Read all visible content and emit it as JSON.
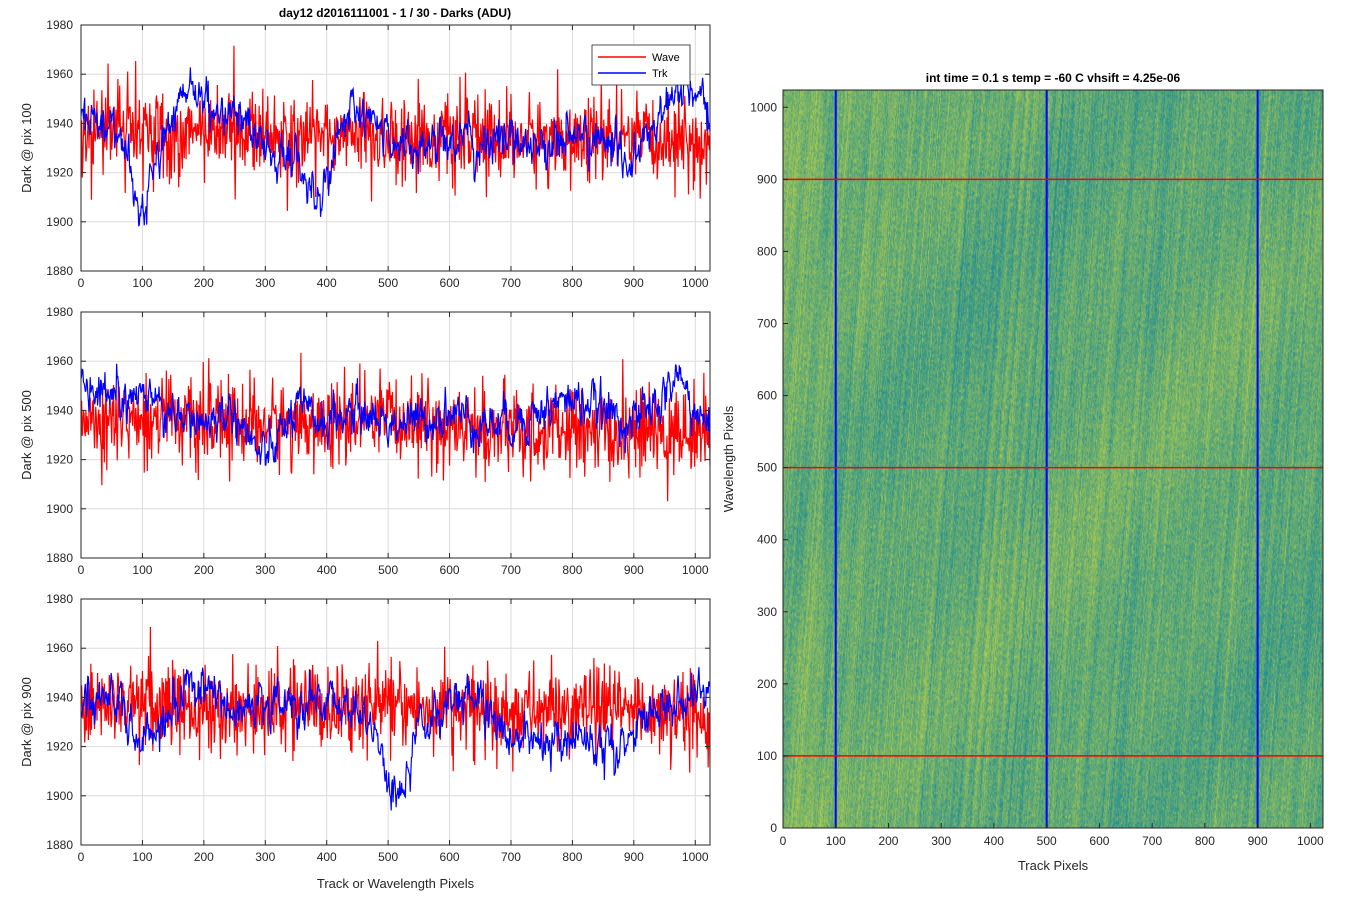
{
  "figure": {
    "title": "day12 d2016111001 - 1 / 30 - Darks (ADU)",
    "legend": {
      "placement": "top-right",
      "entries": [
        "Wave",
        "Trk"
      ]
    }
  },
  "colors": {
    "wave": "#ff0000",
    "trk": "#0000ff",
    "grid": "#dcdcdc",
    "axis": "#262626"
  },
  "chart_data": [
    {
      "type": "line",
      "ylabel": "Dark @ pix 100",
      "xlabel": "",
      "xlim": [
        0,
        1024
      ],
      "ylim": [
        1880,
        1980
      ],
      "xticks": [
        0,
        100,
        200,
        300,
        400,
        500,
        600,
        700,
        800,
        900,
        1000
      ],
      "yticks": [
        1880,
        1900,
        1920,
        1940,
        1960,
        1980
      ],
      "grid": true,
      "series": [
        {
          "name": "Wave",
          "color": "#ff0000",
          "x": [
            0,
            50,
            100,
            150,
            200,
            250,
            300,
            350,
            400,
            450,
            500,
            550,
            600,
            650,
            700,
            750,
            800,
            850,
            900,
            950,
            1000,
            1024
          ],
          "y": [
            1938,
            1940,
            1938,
            1935,
            1937,
            1936,
            1935,
            1934,
            1936,
            1935,
            1934,
            1935,
            1933,
            1934,
            1933,
            1934,
            1933,
            1934,
            1932,
            1933,
            1932,
            1930
          ]
        },
        {
          "name": "Trk",
          "color": "#0000ff",
          "x": [
            0,
            50,
            80,
            100,
            130,
            150,
            180,
            200,
            250,
            300,
            350,
            380,
            400,
            430,
            450,
            500,
            550,
            600,
            650,
            700,
            750,
            800,
            850,
            900,
            950,
            980,
            1000,
            1024
          ],
          "y": [
            1945,
            1940,
            1920,
            1905,
            1925,
            1945,
            1955,
            1950,
            1945,
            1930,
            1925,
            1910,
            1920,
            1940,
            1945,
            1935,
            1930,
            1935,
            1930,
            1935,
            1930,
            1935,
            1932,
            1925,
            1945,
            1955,
            1950,
            1940
          ]
        }
      ]
    },
    {
      "type": "line",
      "ylabel": "Dark @ pix 500",
      "xlabel": "",
      "xlim": [
        0,
        1024
      ],
      "ylim": [
        1880,
        1980
      ],
      "xticks": [
        0,
        100,
        200,
        300,
        400,
        500,
        600,
        700,
        800,
        900,
        1000
      ],
      "yticks": [
        1880,
        1900,
        1920,
        1940,
        1960,
        1980
      ],
      "grid": true,
      "series": [
        {
          "name": "Wave",
          "color": "#ff0000",
          "x": [
            0,
            50,
            100,
            150,
            200,
            250,
            300,
            350,
            400,
            450,
            500,
            550,
            600,
            650,
            700,
            750,
            800,
            850,
            900,
            950,
            1000,
            1024
          ],
          "y": [
            1938,
            1937,
            1936,
            1935,
            1934,
            1935,
            1934,
            1935,
            1934,
            1935,
            1936,
            1935,
            1933,
            1932,
            1931,
            1930,
            1932,
            1930,
            1931,
            1930,
            1932,
            1931
          ]
        },
        {
          "name": "Trk",
          "color": "#0000ff",
          "x": [
            0,
            50,
            100,
            150,
            200,
            250,
            280,
            300,
            350,
            400,
            450,
            500,
            550,
            600,
            650,
            700,
            750,
            800,
            850,
            900,
            950,
            970,
            1000,
            1024
          ],
          "y": [
            1950,
            1948,
            1945,
            1940,
            1935,
            1940,
            1925,
            1920,
            1940,
            1935,
            1940,
            1935,
            1935,
            1940,
            1935,
            1935,
            1940,
            1945,
            1940,
            1935,
            1945,
            1955,
            1940,
            1930
          ]
        }
      ]
    },
    {
      "type": "line",
      "ylabel": "Dark @ pix 900",
      "xlabel": "Track or Wavelength Pixels",
      "xlim": [
        0,
        1024
      ],
      "ylim": [
        1880,
        1980
      ],
      "xticks": [
        0,
        100,
        200,
        300,
        400,
        500,
        600,
        700,
        800,
        900,
        1000
      ],
      "yticks": [
        1880,
        1900,
        1920,
        1940,
        1960,
        1980
      ],
      "grid": true,
      "series": [
        {
          "name": "Wave",
          "color": "#ff0000",
          "x": [
            0,
            50,
            100,
            150,
            200,
            250,
            300,
            350,
            400,
            450,
            500,
            550,
            600,
            650,
            700,
            750,
            800,
            850,
            900,
            950,
            1000,
            1024
          ],
          "y": [
            1937,
            1938,
            1936,
            1936,
            1935,
            1936,
            1935,
            1936,
            1935,
            1937,
            1936,
            1936,
            1935,
            1935,
            1934,
            1935,
            1934,
            1935,
            1934,
            1935,
            1934,
            1933
          ]
        },
        {
          "name": "Trk",
          "color": "#0000ff",
          "x": [
            0,
            50,
            100,
            150,
            200,
            250,
            300,
            350,
            400,
            450,
            480,
            500,
            520,
            550,
            600,
            650,
            700,
            750,
            800,
            850,
            900,
            950,
            1000,
            1024
          ],
          "y": [
            1935,
            1945,
            1920,
            1935,
            1950,
            1930,
            1940,
            1935,
            1940,
            1935,
            1925,
            1905,
            1900,
            1930,
            1935,
            1940,
            1920,
            1925,
            1925,
            1920,
            1928,
            1935,
            1940,
            1945
          ]
        }
      ]
    },
    {
      "type": "heatmap",
      "title": "int time = 0.1 s   temp = -60 C   vhsift = 4.25e-06",
      "xlabel": "Track Pixels",
      "ylabel": "Wavelength Pixels",
      "xlim": [
        0,
        1024
      ],
      "ylim": [
        0,
        1024
      ],
      "xticks": [
        0,
        100,
        200,
        300,
        400,
        500,
        600,
        700,
        800,
        900,
        1000
      ],
      "yticks": [
        0,
        100,
        200,
        300,
        400,
        500,
        600,
        700,
        800,
        900,
        1000
      ],
      "colormap": [
        "#1e9c89",
        "#2a9d8a",
        "#35b779",
        "#6ece58",
        "#b5de2b"
      ],
      "vertical_lines": {
        "x": [
          100,
          500,
          900
        ],
        "color": "#0000ff"
      },
      "horizontal_lines": {
        "y": [
          100,
          500,
          900
        ],
        "color": "#ff0000"
      }
    }
  ]
}
